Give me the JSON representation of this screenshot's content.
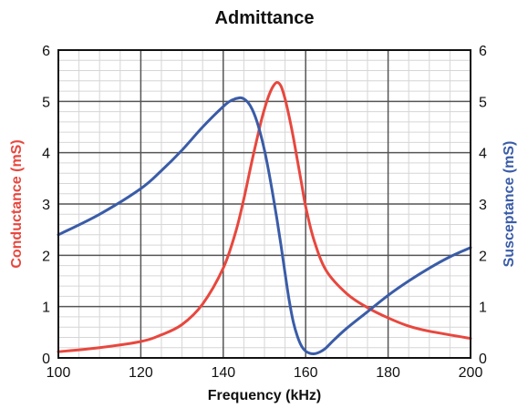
{
  "chart_data": {
    "type": "line",
    "title": "Admittance",
    "xlabel": "Frequency (kHz)",
    "ylabel_left": "Conductance (mS)",
    "ylabel_right": "Susceptance (mS)",
    "xlim": [
      100,
      200
    ],
    "ylim_left": [
      0,
      6
    ],
    "ylim_right": [
      0,
      6
    ],
    "x_ticks": [
      "100",
      "120",
      "140",
      "160",
      "180",
      "200"
    ],
    "y_ticks_left": [
      "0",
      "1",
      "2",
      "3",
      "4",
      "5",
      "6"
    ],
    "y_ticks_right": [
      "0",
      "1",
      "2",
      "3",
      "4",
      "5",
      "6"
    ],
    "grid": true,
    "series": [
      {
        "name": "Conductance (mS)",
        "axis": "left",
        "color": "#e8473e",
        "x": [
          100,
          110,
          120,
          125,
          130,
          135,
          140,
          143,
          145,
          147,
          149,
          150,
          151,
          152,
          153,
          154,
          155,
          156,
          157,
          158,
          159,
          160,
          162,
          165,
          170,
          175,
          180,
          185,
          190,
          200
        ],
        "y": [
          0.12,
          0.2,
          0.32,
          0.45,
          0.65,
          1.05,
          1.75,
          2.45,
          3.1,
          3.85,
          4.55,
          4.85,
          5.1,
          5.28,
          5.37,
          5.3,
          5.05,
          4.7,
          4.3,
          3.85,
          3.4,
          2.95,
          2.3,
          1.7,
          1.25,
          0.98,
          0.78,
          0.62,
          0.52,
          0.38
        ]
      },
      {
        "name": "Susceptance (mS)",
        "axis": "right",
        "color": "#3a5ca8",
        "x": [
          100,
          110,
          120,
          125,
          130,
          135,
          140,
          142,
          144,
          145,
          146,
          147,
          148,
          149,
          150,
          151,
          152,
          153,
          154,
          155,
          156,
          157,
          158,
          159,
          160,
          161,
          162,
          163,
          164,
          165,
          167,
          170,
          175,
          180,
          185,
          190,
          195,
          200
        ],
        "y": [
          2.4,
          2.8,
          3.3,
          3.65,
          4.05,
          4.5,
          4.9,
          5.02,
          5.07,
          5.05,
          4.98,
          4.85,
          4.65,
          4.38,
          4.05,
          3.65,
          3.2,
          2.72,
          2.2,
          1.65,
          1.12,
          0.7,
          0.42,
          0.23,
          0.13,
          0.09,
          0.08,
          0.1,
          0.14,
          0.2,
          0.36,
          0.58,
          0.9,
          1.22,
          1.5,
          1.75,
          1.97,
          2.15
        ]
      }
    ]
  }
}
